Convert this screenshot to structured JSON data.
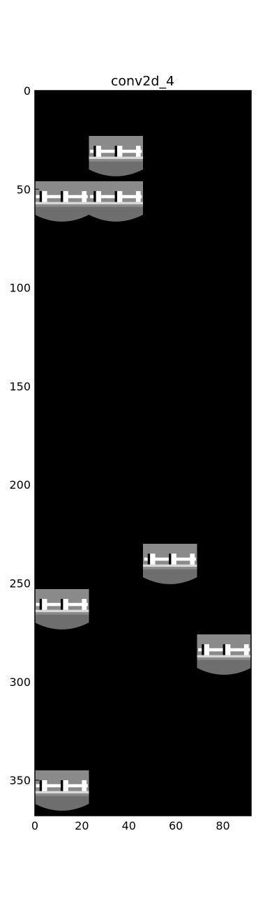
{
  "chart_data": {
    "type": "heatmap",
    "title": "conv2d_4",
    "xlabel": "",
    "ylabel": "",
    "xlim": [
      0,
      92
    ],
    "ylim": [
      368,
      0
    ],
    "x_ticks": [
      0,
      20,
      40,
      60,
      80
    ],
    "y_ticks": [
      0,
      50,
      100,
      150,
      200,
      250,
      300,
      350
    ],
    "grid": false,
    "colormap": "gray",
    "background_value": 0,
    "tile_size": [
      23,
      23
    ],
    "tiles": [
      {
        "col": 1,
        "row": 1
      },
      {
        "col": 0,
        "row": 2
      },
      {
        "col": 1,
        "row": 2
      },
      {
        "col": 2,
        "row": 10
      },
      {
        "col": 0,
        "row": 11
      },
      {
        "col": 3,
        "row": 12
      },
      {
        "col": 0,
        "row": 15
      }
    ]
  }
}
